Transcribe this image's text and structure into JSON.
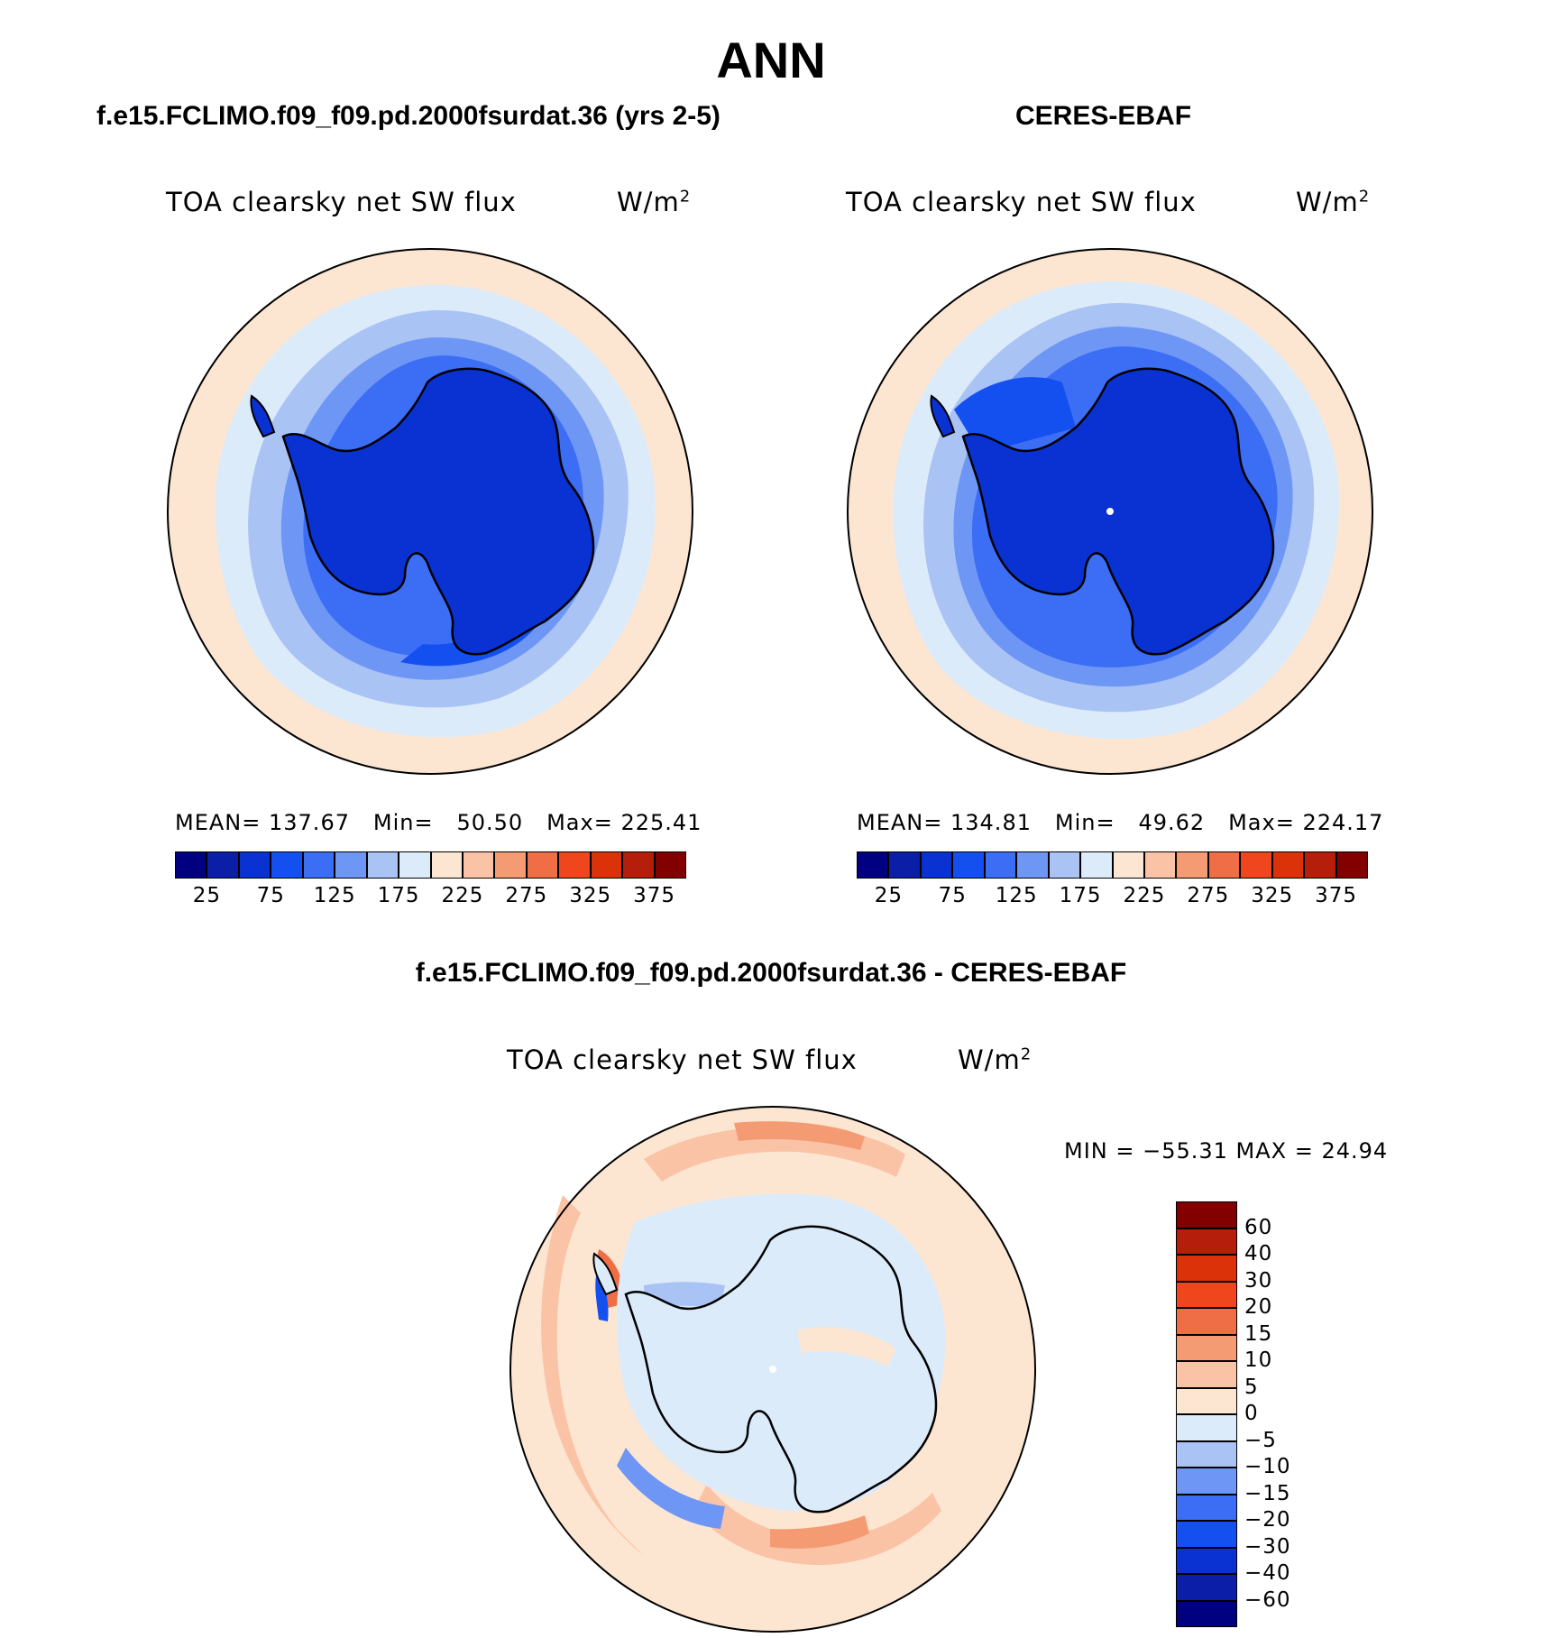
{
  "title": "ANN",
  "panels": [
    {
      "case_title": "f.e15.FCLIMO.f09_f09.pd.2000fsurdat.36 (yrs 2-5)",
      "variable": "TOA clearsky net SW flux",
      "units_base": "W/m",
      "units_sup": "2",
      "stats": {
        "mean_label": "MEAN=",
        "mean": "137.67",
        "min_label": "Min=",
        "min": "50.50",
        "max_label": "Max=",
        "max": "225.41"
      }
    },
    {
      "case_title": "CERES-EBAF",
      "variable": "TOA clearsky net SW flux",
      "units_base": "W/m",
      "units_sup": "2",
      "stats": {
        "mean_label": "MEAN=",
        "mean": "134.81",
        "min_label": "Min=",
        "min": "49.62",
        "max_label": "Max=",
        "max": "224.17"
      }
    },
    {
      "case_title": "f.e15.FCLIMO.f09_f09.pd.2000fsurdat.36 - CERES-EBAF",
      "variable": "TOA clearsky net SW flux",
      "units_base": "W/m",
      "units_sup": "2",
      "stats": {
        "text": "MIN = −55.31 MAX =  24.94"
      }
    }
  ],
  "colorbar_main": {
    "ticks": [
      "25",
      "75",
      "125",
      "175",
      "225",
      "275",
      "325",
      "375"
    ],
    "colors": [
      "#000080",
      "#0a1ea8",
      "#0a32d2",
      "#1450f0",
      "#3c6ef5",
      "#6e96f5",
      "#aac3f5",
      "#dcebfa",
      "#fce6d2",
      "#fac3a5",
      "#f59b73",
      "#f06e46",
      "#f0461e",
      "#dc320a",
      "#b41e0a",
      "#820000"
    ]
  },
  "colorbar_diff": {
    "ticks": [
      "60",
      "40",
      "30",
      "20",
      "15",
      "10",
      "5",
      "0",
      "−5",
      "−10",
      "−15",
      "−20",
      "−30",
      "−40",
      "−60"
    ],
    "colors": [
      "#820000",
      "#b41e0a",
      "#dc320a",
      "#f0461e",
      "#f06e46",
      "#f59b73",
      "#fac3a5",
      "#fce6d2",
      "#dcebfa",
      "#aac3f5",
      "#6e96f5",
      "#3c6ef5",
      "#1450f0",
      "#0a32d2",
      "#0a1ea8",
      "#000080"
    ]
  }
}
